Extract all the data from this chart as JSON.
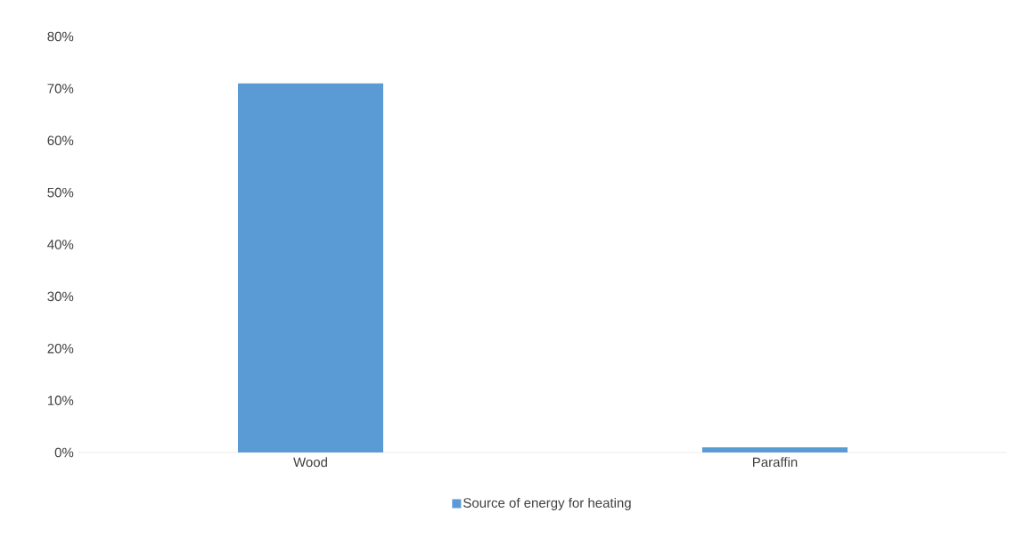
{
  "chart_data": {
    "type": "bar",
    "categories": [
      "Wood",
      "Paraffin"
    ],
    "series": [
      {
        "name": "Source of energy for heating",
        "color": "#5b9bd5",
        "values": [
          71,
          1
        ]
      }
    ],
    "ylim": [
      0,
      80
    ],
    "yticks": [
      {
        "value": 0,
        "label": "0%"
      },
      {
        "value": 10,
        "label": "10%"
      },
      {
        "value": 20,
        "label": "20%"
      },
      {
        "value": 30,
        "label": "30%"
      },
      {
        "value": 40,
        "label": "40%"
      },
      {
        "value": 50,
        "label": "50%"
      },
      {
        "value": 60,
        "label": "60%"
      },
      {
        "value": 70,
        "label": "70%"
      },
      {
        "value": 80,
        "label": "80%"
      }
    ],
    "legend": "bottom"
  }
}
